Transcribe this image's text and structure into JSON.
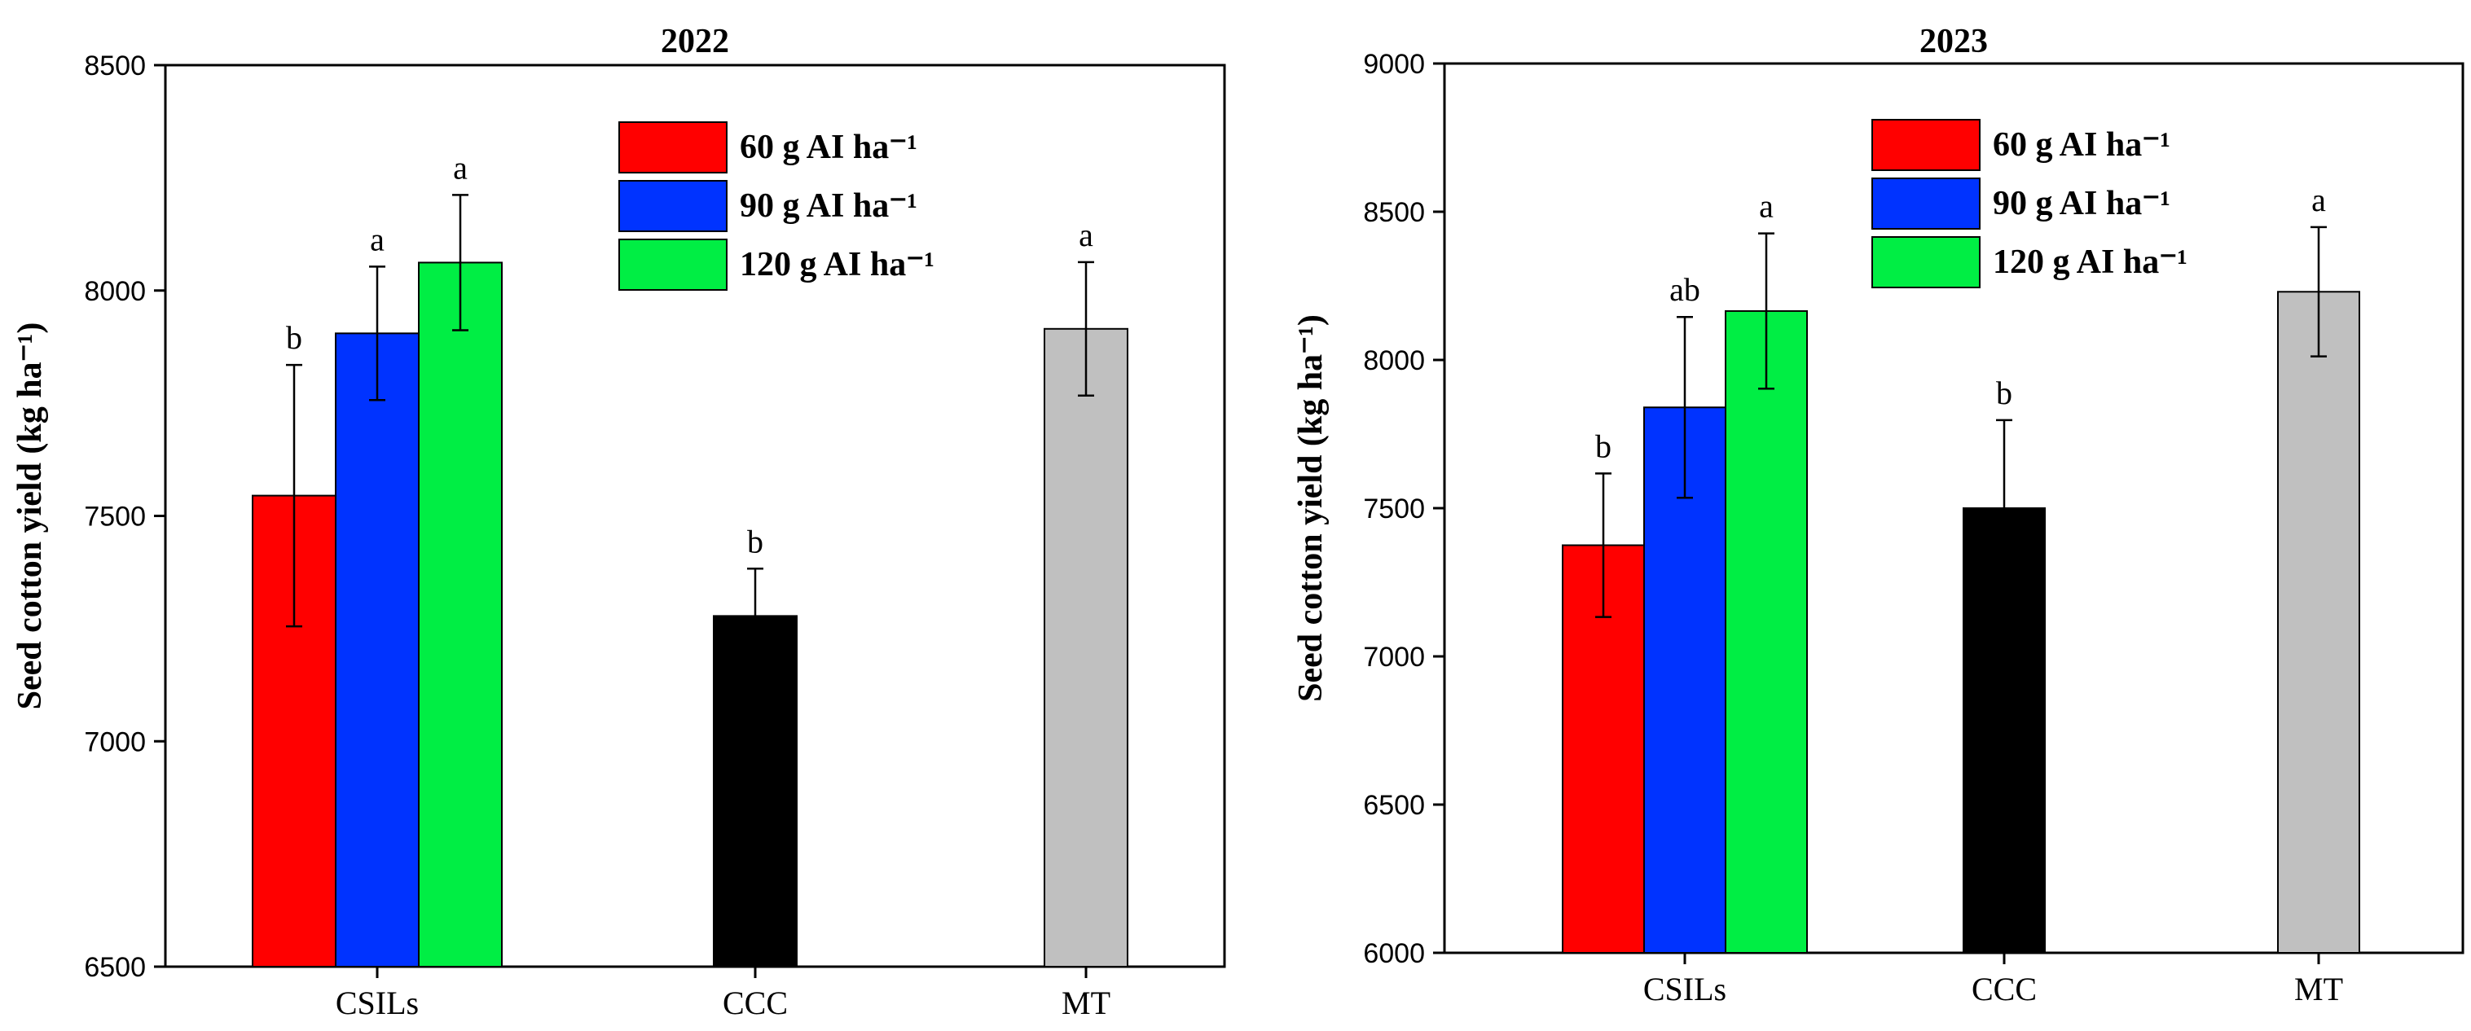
{
  "chart_data": [
    {
      "type": "bar",
      "title": "2022",
      "ylabel": "Seed cotton yield (kg ha⁻¹)",
      "xlabel": "",
      "ylim": [
        6500,
        8500
      ],
      "yticks": [
        6500,
        7000,
        7500,
        8000,
        8500
      ],
      "categories": [
        "CSILs",
        "CCC",
        "MT"
      ],
      "legend": {
        "placement": "top-right",
        "entries": [
          {
            "label": "60 g AI ha⁻¹",
            "color": "#ff0000"
          },
          {
            "label": "90 g AI ha⁻¹",
            "color": "#0033ff"
          },
          {
            "label": "120 g AI ha⁻¹",
            "color": "#00ee44"
          }
        ]
      },
      "bars": [
        {
          "category": "CSILs",
          "series": "60 g AI ha⁻¹",
          "value": 7545,
          "error": 290,
          "letter": "b",
          "color": "#ff0000"
        },
        {
          "category": "CSILs",
          "series": "90 g AI ha⁻¹",
          "value": 7905,
          "error": 148,
          "letter": "a",
          "color": "#0033ff"
        },
        {
          "category": "CSILs",
          "series": "120 g AI ha⁻¹",
          "value": 8062,
          "error": 150,
          "letter": "a",
          "color": "#00ee44"
        },
        {
          "category": "CCC",
          "series": "CCC",
          "value": 7278,
          "error": 105,
          "letter": "b",
          "color": "#000000"
        },
        {
          "category": "MT",
          "series": "MT",
          "value": 7915,
          "error": 148,
          "letter": "a",
          "color": "#c0c0c0"
        }
      ]
    },
    {
      "type": "bar",
      "title": "2023",
      "ylabel": "Seed cotton yield (kg ha⁻¹)",
      "xlabel": "",
      "ylim": [
        6000,
        9000
      ],
      "yticks": [
        6000,
        6500,
        7000,
        7500,
        8000,
        8500,
        9000
      ],
      "categories": [
        "CSILs",
        "CCC",
        "MT"
      ],
      "legend": {
        "placement": "top-right",
        "entries": [
          {
            "label": "60 g AI ha⁻¹",
            "color": "#ff0000"
          },
          {
            "label": "90 g AI ha⁻¹",
            "color": "#0033ff"
          },
          {
            "label": "120 g AI ha⁻¹",
            "color": "#00ee44"
          }
        ]
      },
      "bars": [
        {
          "category": "CSILs",
          "series": "60 g AI ha⁻¹",
          "value": 7375,
          "error": 242,
          "letter": "b",
          "color": "#ff0000"
        },
        {
          "category": "CSILs",
          "series": "90 g AI ha⁻¹",
          "value": 7840,
          "error": 305,
          "letter": "ab",
          "color": "#0033ff"
        },
        {
          "category": "CSILs",
          "series": "120 g AI ha⁻¹",
          "value": 8165,
          "error": 262,
          "letter": "a",
          "color": "#00ee44"
        },
        {
          "category": "CCC",
          "series": "CCC",
          "value": 7500,
          "error": 297,
          "letter": "b",
          "color": "#000000"
        },
        {
          "category": "MT",
          "series": "MT",
          "value": 8230,
          "error": 218,
          "letter": "a",
          "color": "#c0c0c0"
        }
      ]
    }
  ]
}
